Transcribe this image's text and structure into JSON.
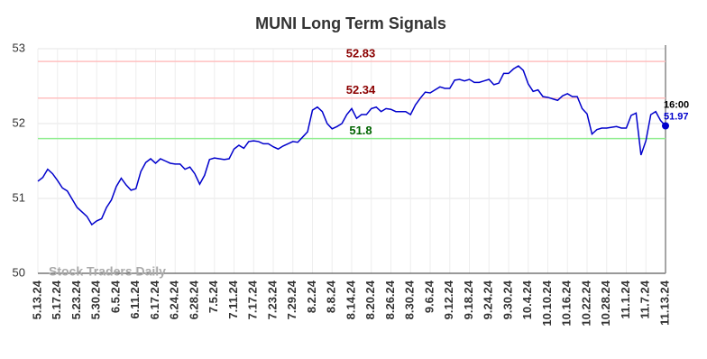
{
  "chart_data": {
    "type": "line",
    "title": "MUNI Long Term Signals",
    "watermark": "Stock Traders Daily",
    "time_label": "16:00",
    "categories": [
      "5.13.24",
      null,
      null,
      null,
      "5.17.24",
      null,
      null,
      null,
      "5.23.24",
      null,
      null,
      null,
      "5.30.24",
      null,
      null,
      null,
      "6.5.24",
      null,
      null,
      null,
      "6.11.24",
      null,
      null,
      null,
      "6.17.24",
      null,
      null,
      null,
      "6.24.24",
      null,
      null,
      null,
      "6.28.24",
      null,
      null,
      null,
      "7.5.24",
      null,
      null,
      null,
      "7.11.24",
      null,
      null,
      null,
      "7.17.24",
      null,
      null,
      null,
      "7.23.24",
      null,
      null,
      null,
      "7.29.24",
      null,
      null,
      null,
      "8.2.24",
      null,
      null,
      null,
      "8.8.24",
      null,
      null,
      null,
      "8.14.24",
      null,
      null,
      null,
      "8.20.24",
      null,
      null,
      null,
      "8.26.24",
      null,
      null,
      null,
      "8.30.24",
      null,
      null,
      null,
      "9.6.24",
      null,
      null,
      null,
      "9.12.24",
      null,
      null,
      null,
      "9.18.24",
      null,
      null,
      null,
      "9.24.24",
      null,
      null,
      null,
      "9.30.24",
      null,
      null,
      null,
      "10.4.24",
      null,
      null,
      null,
      "10.10.24",
      null,
      null,
      null,
      "10.16.24",
      null,
      null,
      null,
      "10.22.24",
      null,
      null,
      null,
      "10.28.24",
      null,
      null,
      null,
      "11.1.24",
      null,
      null,
      null,
      "11.7.24",
      null,
      null,
      null,
      "11.13.24"
    ],
    "values": [
      51.23,
      51.28,
      51.39,
      51.33,
      51.24,
      51.14,
      51.1,
      50.99,
      50.88,
      50.82,
      50.76,
      50.65,
      50.7,
      50.73,
      50.88,
      50.98,
      51.16,
      51.27,
      51.18,
      51.11,
      51.13,
      51.36,
      51.48,
      51.53,
      51.47,
      51.53,
      51.5,
      51.47,
      51.46,
      51.46,
      51.39,
      51.42,
      51.33,
      51.19,
      51.31,
      51.52,
      51.54,
      51.53,
      51.52,
      51.53,
      51.66,
      51.71,
      51.67,
      51.76,
      51.77,
      51.76,
      51.73,
      51.73,
      51.69,
      51.66,
      51.7,
      51.73,
      51.76,
      51.75,
      51.82,
      51.89,
      52.18,
      52.22,
      52.16,
      52.0,
      51.93,
      51.96,
      52.0,
      52.12,
      52.2,
      52.07,
      52.12,
      52.12,
      52.2,
      52.22,
      52.16,
      52.2,
      52.19,
      52.16,
      52.16,
      52.16,
      52.12,
      52.25,
      52.34,
      52.42,
      52.41,
      52.45,
      52.49,
      52.47,
      52.47,
      52.58,
      52.59,
      52.57,
      52.59,
      52.55,
      52.55,
      52.57,
      52.59,
      52.52,
      52.54,
      52.67,
      52.67,
      52.73,
      52.77,
      52.71,
      52.53,
      52.43,
      52.45,
      52.36,
      52.35,
      52.33,
      52.31,
      52.37,
      52.4,
      52.36,
      52.36,
      52.2,
      52.13,
      51.86,
      51.92,
      51.94,
      51.94,
      51.95,
      51.96,
      51.94,
      51.94,
      52.11,
      52.14,
      51.58,
      51.77,
      52.12,
      52.16,
      52.04,
      51.97
    ],
    "color": "#0000cc",
    "hlines": [
      {
        "value": 52.83,
        "color": "#ffc0c0",
        "label_color": "#8b0000"
      },
      {
        "value": 52.34,
        "color": "#ffc0c0",
        "label_color": "#8b0000"
      },
      {
        "value": 51.8,
        "color": "#90ee90",
        "label_color": "#006400"
      }
    ],
    "ylim": [
      50,
      53
    ],
    "yticks": [
      50,
      51,
      52,
      53
    ],
    "grid": true
  }
}
